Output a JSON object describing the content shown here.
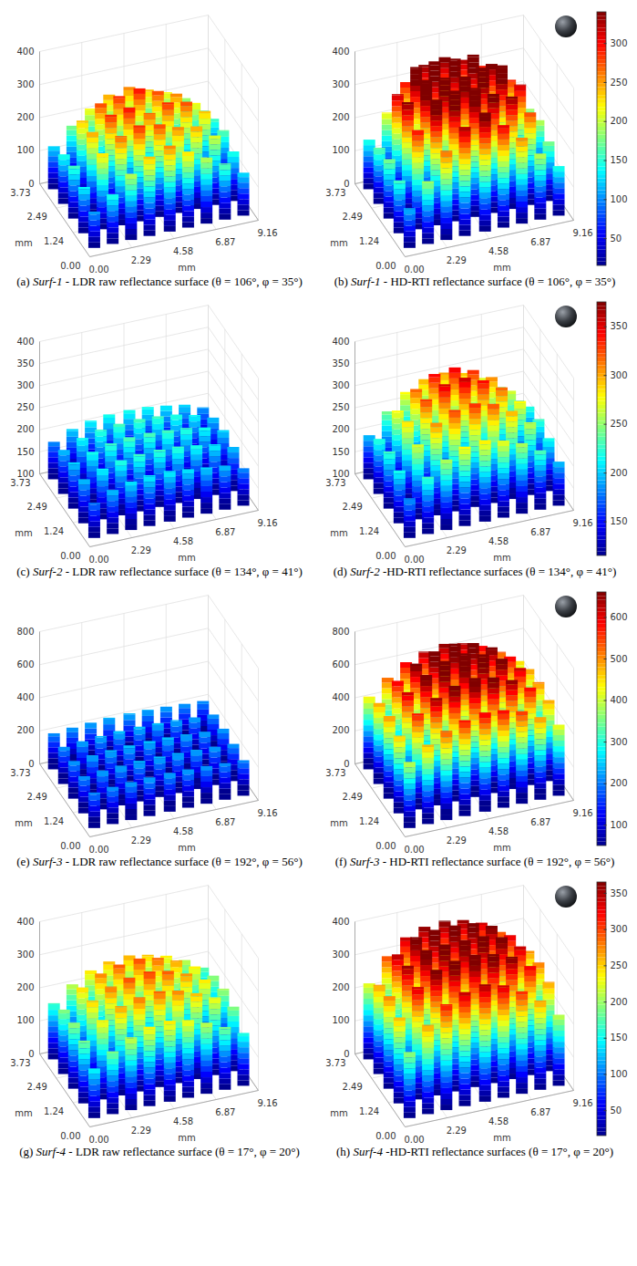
{
  "chart_data": [
    {
      "type": "surface",
      "caption": {
        "label": "(a)",
        "sample": "Surf-1",
        "text": "- LDR raw reflectance surface (θ = 106°, φ = 35°)"
      },
      "xlabel": "mm",
      "ylabel": "mm",
      "grid": true,
      "xlim": [
        0,
        9.16
      ],
      "xticks": [
        {
          "value": 0,
          "label": "0.00"
        },
        2.29,
        4.58,
        6.87,
        9.16
      ],
      "ylim": [
        0,
        3.73
      ],
      "yticks": [
        {
          "value": 0,
          "label": "0.00"
        },
        1.24,
        2.49,
        3.73
      ],
      "zlim": [
        0,
        400
      ],
      "zticks": [
        0,
        100,
        200,
        300,
        400
      ],
      "clim": [
        15,
        340
      ],
      "x": [
        0.5,
        1.5,
        2.5,
        3.5,
        4.6,
        5.6,
        6.6,
        7.6,
        8.6
      ],
      "y": [
        0.35,
        1.1,
        1.85,
        2.6,
        3.35
      ],
      "z": [
        [
          110,
          150,
          200,
          240,
          260,
          230,
          200,
          170,
          130
        ],
        [
          140,
          230,
          270,
          290,
          280,
          260,
          250,
          210,
          150
        ],
        [
          160,
          250,
          290,
          300,
          270,
          290,
          280,
          240,
          170
        ],
        [
          150,
          240,
          280,
          290,
          300,
          280,
          260,
          220,
          160
        ],
        [
          130,
          180,
          220,
          250,
          260,
          240,
          220,
          190,
          140
        ]
      ]
    },
    {
      "type": "surface",
      "caption": {
        "label": "(b)",
        "sample": "Surf-1",
        "text": "- HD-RTI reflectance surface (θ = 106°, φ = 35°)"
      },
      "xlabel": "mm",
      "ylabel": "mm",
      "grid": true,
      "xlim": [
        0,
        9.16
      ],
      "xticks": [
        {
          "value": 0,
          "label": "0.00"
        },
        2.29,
        4.58,
        6.87,
        9.16
      ],
      "ylim": [
        0,
        3.73
      ],
      "yticks": [
        {
          "value": 0,
          "label": "0.00"
        },
        1.24,
        2.49,
        3.73
      ],
      "zlim": [
        0,
        400
      ],
      "zticks": [
        0,
        100,
        200,
        300,
        400
      ],
      "clim": [
        15,
        340
      ],
      "cticks": [
        50,
        100,
        150,
        200,
        250,
        300
      ],
      "x": [
        0.5,
        1.5,
        2.5,
        3.5,
        4.6,
        5.6,
        6.6,
        7.6,
        8.6
      ],
      "y": [
        0.35,
        1.1,
        1.85,
        2.6,
        3.35
      ],
      "z": [
        [
          120,
          190,
          270,
          330,
          360,
          310,
          260,
          200,
          150
        ],
        [
          160,
          300,
          380,
          395,
          390,
          360,
          340,
          280,
          180
        ],
        [
          180,
          340,
          395,
          390,
          380,
          395,
          390,
          320,
          200
        ],
        [
          170,
          320,
          390,
          395,
          390,
          390,
          350,
          290,
          190
        ],
        [
          150,
          220,
          300,
          340,
          350,
          330,
          300,
          240,
          160
        ]
      ]
    },
    {
      "type": "surface",
      "caption": {
        "label": "(c)",
        "sample": "Surf-2",
        "text": "- LDR raw reflectance surface (θ = 134°, φ = 41°)"
      },
      "xlabel": "mm",
      "ylabel": "mm",
      "grid": true,
      "xlim": [
        0,
        9.16
      ],
      "xticks": [
        {
          "value": 0,
          "label": "0.00"
        },
        2.29,
        4.58,
        6.87,
        9.16
      ],
      "ylim": [
        0,
        3.73
      ],
      "yticks": [
        {
          "value": 0,
          "label": "0.00"
        },
        1.24,
        2.49,
        3.73
      ],
      "zlim": [
        100,
        400
      ],
      "zticks": [
        100,
        150,
        200,
        250,
        300,
        350,
        400
      ],
      "clim": [
        115,
        375
      ],
      "x": [
        0.5,
        1.5,
        2.5,
        3.5,
        4.6,
        5.6,
        6.6,
        7.6,
        8.6
      ],
      "y": [
        0.35,
        1.1,
        1.85,
        2.6,
        3.35
      ],
      "z": [
        [
          180,
          200,
          210,
          215,
          215,
          210,
          205,
          200,
          185
        ],
        [
          200,
          215,
          225,
          230,
          230,
          228,
          222,
          215,
          200
        ],
        [
          205,
          220,
          230,
          235,
          235,
          232,
          228,
          220,
          205
        ],
        [
          200,
          218,
          228,
          232,
          233,
          230,
          225,
          215,
          200
        ],
        [
          185,
          205,
          215,
          220,
          220,
          218,
          212,
          205,
          190
        ]
      ]
    },
    {
      "type": "surface",
      "caption": {
        "label": "(d)",
        "sample": "Surf-2",
        "text": "-HD-RTI reflectance surfaces (θ = 134°, φ = 41°)"
      },
      "xlabel": "mm",
      "ylabel": "mm",
      "grid": true,
      "xlim": [
        0,
        9.16
      ],
      "xticks": [
        {
          "value": 0,
          "label": "0.00"
        },
        2.29,
        4.58,
        6.87,
        9.16
      ],
      "ylim": [
        0,
        3.73
      ],
      "yticks": [
        {
          "value": 0,
          "label": "0.00"
        },
        1.24,
        2.49,
        3.73
      ],
      "zlim": [
        100,
        400
      ],
      "zticks": [
        100,
        150,
        200,
        250,
        300,
        350,
        400
      ],
      "clim": [
        115,
        375
      ],
      "cticks": [
        150,
        200,
        250,
        300,
        350
      ],
      "x": [
        0.5,
        1.5,
        2.5,
        3.5,
        4.6,
        5.6,
        6.6,
        7.6,
        8.6
      ],
      "y": [
        0.35,
        1.1,
        1.85,
        2.6,
        3.35
      ],
      "z": [
        [
          190,
          230,
          260,
          280,
          285,
          275,
          260,
          235,
          200
        ],
        [
          220,
          270,
          310,
          330,
          335,
          325,
          300,
          265,
          220
        ],
        [
          230,
          290,
          330,
          355,
          360,
          345,
          320,
          280,
          230
        ],
        [
          225,
          280,
          320,
          345,
          350,
          335,
          310,
          270,
          225
        ],
        [
          200,
          245,
          280,
          300,
          305,
          295,
          275,
          245,
          205
        ]
      ]
    },
    {
      "type": "surface",
      "caption": {
        "label": "(e)",
        "sample": "Surf-3",
        "text": "- LDR raw reflectance surface (θ = 192°, φ = 56°)"
      },
      "xlabel": "mm",
      "ylabel": "mm",
      "grid": true,
      "xlim": [
        0,
        9.16
      ],
      "xticks": [
        {
          "value": 0,
          "label": "0.00"
        },
        2.29,
        4.58,
        6.87,
        9.16
      ],
      "ylim": [
        0,
        3.73
      ],
      "yticks": [
        {
          "value": 0,
          "label": "0.00"
        },
        1.24,
        2.49,
        3.73
      ],
      "zlim": [
        0,
        800
      ],
      "zticks": [
        0,
        200,
        400,
        600,
        800
      ],
      "clim": [
        50,
        660
      ],
      "x": [
        0.5,
        1.5,
        2.5,
        3.5,
        4.6,
        5.6,
        6.6,
        7.6,
        8.6
      ],
      "y": [
        0.35,
        1.1,
        1.85,
        2.6,
        3.35
      ],
      "z": [
        [
          215,
          225,
          230,
          235,
          235,
          232,
          228,
          222,
          215
        ],
        [
          225,
          235,
          240,
          245,
          245,
          242,
          238,
          232,
          225
        ],
        [
          228,
          238,
          245,
          250,
          250,
          248,
          242,
          235,
          228
        ],
        [
          225,
          235,
          242,
          248,
          248,
          245,
          240,
          232,
          225
        ],
        [
          218,
          228,
          235,
          240,
          240,
          238,
          232,
          225,
          218
        ]
      ]
    },
    {
      "type": "surface",
      "caption": {
        "label": "(f)",
        "sample": "Surf-3",
        "text": "- HD-RTI reflectance surface (θ = 192°, φ = 56°)"
      },
      "xlabel": "mm",
      "ylabel": "mm",
      "grid": true,
      "xlim": [
        0,
        9.16
      ],
      "xticks": [
        {
          "value": 0,
          "label": "0.00"
        },
        2.29,
        4.58,
        6.87,
        9.16
      ],
      "ylim": [
        0,
        3.73
      ],
      "yticks": [
        {
          "value": 0,
          "label": "0.00"
        },
        1.24,
        2.49,
        3.73
      ],
      "zlim": [
        0,
        800
      ],
      "zticks": [
        0,
        200,
        400,
        600,
        800
      ],
      "clim": [
        50,
        660
      ],
      "cticks": [
        100,
        200,
        300,
        400,
        500,
        600
      ],
      "x": [
        0.5,
        1.5,
        2.5,
        3.5,
        4.6,
        5.6,
        6.6,
        7.6,
        8.6
      ],
      "y": [
        0.35,
        1.1,
        1.85,
        2.6,
        3.35
      ],
      "z": [
        [
          400,
          480,
          540,
          580,
          600,
          590,
          560,
          500,
          430
        ],
        [
          470,
          580,
          650,
          700,
          720,
          700,
          660,
          590,
          490
        ],
        [
          500,
          620,
          700,
          760,
          780,
          750,
          700,
          620,
          510
        ],
        [
          490,
          600,
          680,
          730,
          750,
          730,
          680,
          600,
          500
        ],
        [
          440,
          530,
          600,
          640,
          660,
          640,
          600,
          540,
          460
        ]
      ]
    },
    {
      "type": "surface",
      "caption": {
        "label": "(g)",
        "sample": "Surf-4",
        "text": "- LDR raw reflectance surface (θ = 17°, φ = 20°)"
      },
      "xlabel": "mm",
      "ylabel": "mm",
      "grid": true,
      "xlim": [
        0,
        9.16
      ],
      "xticks": [
        {
          "value": 0,
          "label": "0.00"
        },
        2.29,
        4.58,
        6.87,
        9.16
      ],
      "ylim": [
        0,
        3.73
      ],
      "yticks": [
        {
          "value": 0,
          "label": "0.00"
        },
        1.24,
        2.49,
        3.73
      ],
      "zlim": [
        0,
        400
      ],
      "zticks": [
        0,
        100,
        200,
        300,
        400
      ],
      "clim": [
        15,
        365
      ],
      "x": [
        0.5,
        1.5,
        2.5,
        3.5,
        4.6,
        5.6,
        6.6,
        7.6,
        8.6
      ],
      "y": [
        0.35,
        1.1,
        1.85,
        2.6,
        3.35
      ],
      "z": [
        [
          150,
          190,
          220,
          240,
          245,
          235,
          215,
          190,
          160
        ],
        [
          190,
          240,
          270,
          285,
          290,
          280,
          260,
          235,
          195
        ],
        [
          200,
          255,
          285,
          300,
          305,
          295,
          275,
          245,
          205
        ],
        [
          195,
          250,
          280,
          295,
          300,
          290,
          270,
          240,
          200
        ],
        [
          170,
          215,
          245,
          260,
          265,
          255,
          240,
          215,
          180
        ]
      ]
    },
    {
      "type": "surface",
      "caption": {
        "label": "(h)",
        "sample": "Surf-4",
        "text": "-HD-RTI reflectance surfaces (θ = 17°, φ = 20°)"
      },
      "xlabel": "mm",
      "ylabel": "mm",
      "grid": true,
      "xlim": [
        0,
        9.16
      ],
      "xticks": [
        {
          "value": 0,
          "label": "0.00"
        },
        2.29,
        4.58,
        6.87,
        9.16
      ],
      "ylim": [
        0,
        3.73
      ],
      "yticks": [
        {
          "value": 0,
          "label": "0.00"
        },
        1.24,
        2.49,
        3.73
      ],
      "zlim": [
        0,
        400
      ],
      "zticks": [
        0,
        100,
        200,
        300,
        400
      ],
      "clim": [
        15,
        365
      ],
      "cticks": [
        50,
        100,
        150,
        200,
        250,
        300,
        350
      ],
      "x": [
        0.5,
        1.5,
        2.5,
        3.5,
        4.6,
        5.6,
        6.6,
        7.6,
        8.6
      ],
      "y": [
        0.35,
        1.1,
        1.85,
        2.6,
        3.35
      ],
      "z": [
        [
          200,
          270,
          320,
          345,
          355,
          340,
          310,
          270,
          215
        ],
        [
          260,
          340,
          380,
          395,
          400,
          390,
          370,
          330,
          270
        ],
        [
          280,
          360,
          395,
          400,
          400,
          400,
          385,
          345,
          285
        ],
        [
          270,
          350,
          390,
          400,
          400,
          395,
          375,
          335,
          275
        ],
        [
          230,
          300,
          345,
          365,
          370,
          360,
          340,
          300,
          240
        ]
      ]
    }
  ]
}
